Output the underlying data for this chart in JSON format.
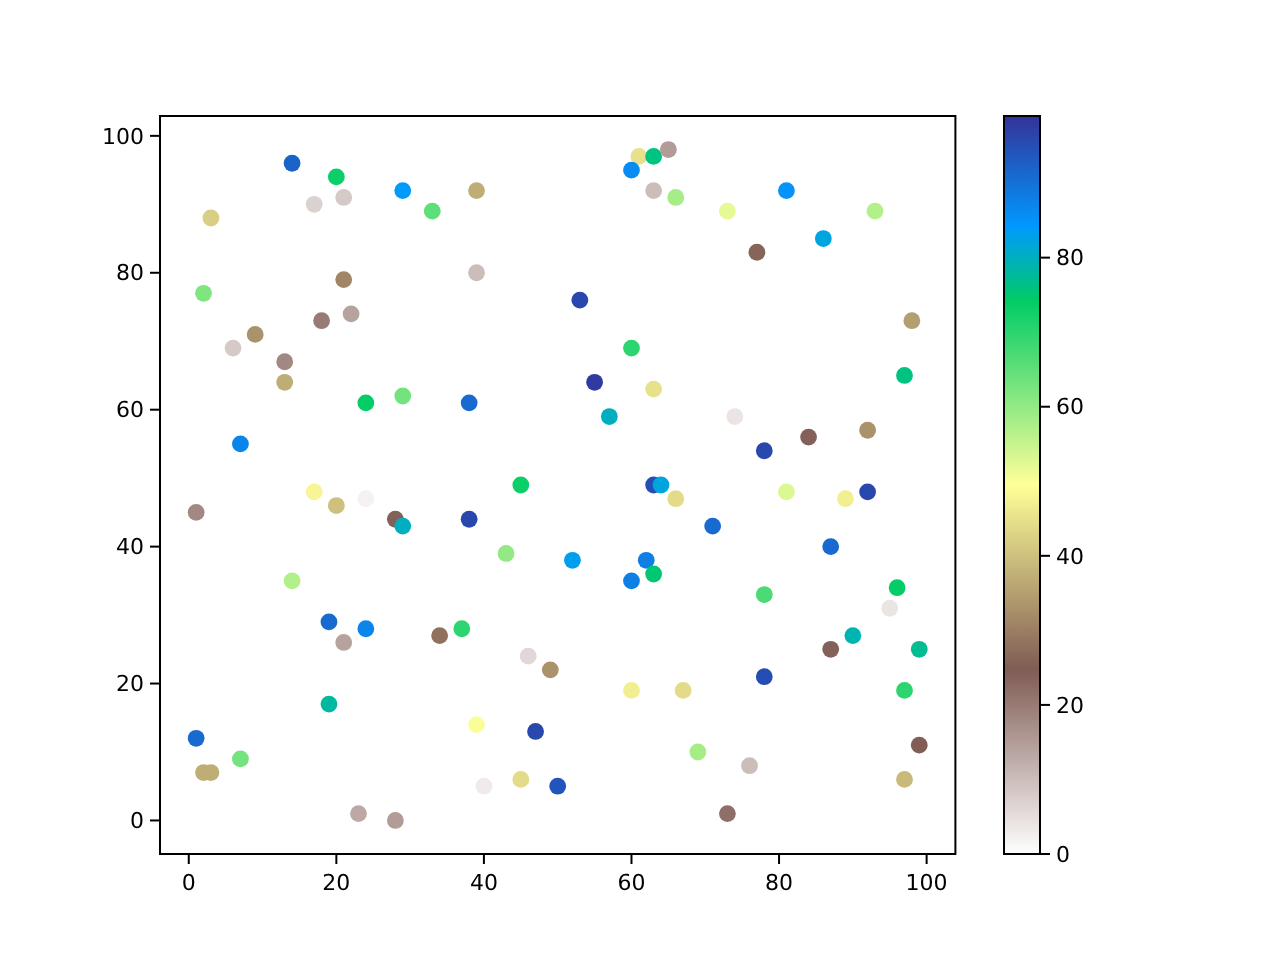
{
  "chart_data": {
    "type": "scatter",
    "marker": "circle",
    "x": [
      14,
      20,
      29,
      39,
      3,
      17,
      21,
      33,
      39,
      2,
      21,
      9,
      6,
      18,
      22,
      13,
      13,
      24,
      29,
      38,
      7,
      45,
      17,
      61,
      63,
      65,
      60,
      63,
      66,
      73,
      81,
      93,
      86,
      77,
      53,
      98,
      60,
      97,
      55,
      63,
      57,
      74,
      78,
      84,
      92,
      63,
      64,
      66,
      81,
      89,
      92,
      71,
      87,
      52,
      62,
      60,
      63,
      78,
      96,
      95,
      90,
      99,
      87,
      49,
      60,
      67,
      78,
      97,
      47,
      99,
      69,
      76,
      97,
      50,
      73,
      20,
      24,
      1,
      28,
      29,
      38,
      43,
      14,
      19,
      24,
      21,
      34,
      37,
      46,
      19,
      39,
      1,
      7,
      2,
      3,
      40,
      45,
      23,
      28
    ],
    "values": [
      96,
      94,
      92,
      92,
      88,
      90,
      91,
      89,
      80,
      77,
      79,
      71,
      69,
      73,
      74,
      67,
      64,
      61,
      62,
      61,
      55,
      49,
      48,
      97,
      97,
      98,
      95,
      92,
      91,
      89,
      92,
      89,
      85,
      83,
      76,
      73,
      69,
      65,
      64,
      63,
      59,
      59,
      54,
      56,
      57,
      49,
      49,
      47,
      48,
      47,
      48,
      43,
      40,
      38,
      38,
      35,
      36,
      33,
      34,
      31,
      27,
      25,
      25,
      22,
      19,
      19,
      21,
      19,
      13,
      11,
      10,
      8,
      6,
      5,
      1,
      46,
      47,
      45,
      44,
      43,
      44,
      39,
      35,
      29,
      28,
      26,
      27,
      28,
      24,
      17,
      14,
      12,
      9,
      7,
      7,
      5,
      6,
      1,
      0
    ],
    "cvalues": [
      92,
      73,
      84,
      37,
      42,
      7,
      8,
      65,
      10,
      62,
      31,
      33,
      8,
      20,
      14,
      18,
      37,
      74,
      63,
      91,
      87,
      73,
      48,
      45,
      76,
      15,
      86,
      10,
      58,
      52,
      85,
      57,
      82,
      26,
      96,
      35,
      70,
      76,
      98,
      45,
      80,
      4,
      96,
      24,
      33,
      95,
      82,
      44,
      53,
      47,
      96,
      91,
      91,
      83,
      88,
      88,
      75,
      67,
      74,
      4,
      79,
      77,
      24,
      33,
      47,
      44,
      95,
      70,
      96,
      25,
      58,
      10,
      39,
      94,
      22,
      40,
      2,
      18,
      24,
      80,
      96,
      60,
      57,
      91,
      87,
      14,
      28,
      70,
      6,
      78,
      50,
      91,
      63,
      37,
      37,
      3,
      44,
      13,
      15
    ],
    "clim": [
      0,
      99
    ],
    "cticks": [
      0,
      20,
      40,
      60,
      80
    ],
    "xlim": [
      -3.9,
      103.9
    ],
    "ylim": [
      -4.9,
      102.9
    ],
    "xticks": [
      0,
      20,
      40,
      60,
      80,
      100
    ],
    "yticks": [
      0,
      20,
      40,
      60,
      80,
      100
    ]
  }
}
